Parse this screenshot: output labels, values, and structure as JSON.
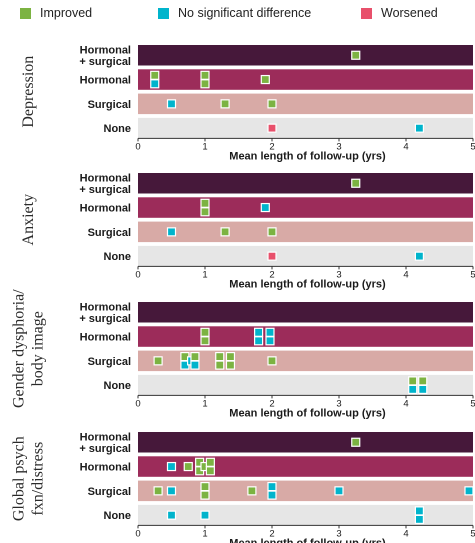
{
  "legend": {
    "improved": {
      "label": "Improved",
      "color": "#7cb342"
    },
    "nsd": {
      "label": "No significant difference",
      "color": "#00b4cc"
    },
    "worsened": {
      "label": "Worsened",
      "color": "#e8506b"
    }
  },
  "row_colors": {
    "hormonal_surgical": "#46183a",
    "hormonal": "#9c2c5a",
    "surgical": "#d8aaa6",
    "none": "#e6e6e6"
  },
  "chart_data": [
    {
      "type": "scatter",
      "title": "Depression",
      "xlabel": "Mean length of follow-up (yrs)",
      "xlim": [
        0,
        5
      ],
      "xticks": [
        "0",
        "1",
        "2",
        "3",
        "4",
        "5"
      ],
      "categories": [
        "Hormonal\n+ surgical",
        "Hormonal",
        "Surgical",
        "None"
      ],
      "points": [
        {
          "row": 0,
          "x": 3.25,
          "outcome": "improved"
        },
        {
          "row": 1,
          "x": 0.25,
          "outcome": "improved"
        },
        {
          "row": 1,
          "x": 0.25,
          "outcome": "nsd"
        },
        {
          "row": 1,
          "x": 1.0,
          "outcome": "improved"
        },
        {
          "row": 1,
          "x": 1.0,
          "outcome": "improved"
        },
        {
          "row": 1,
          "x": 1.9,
          "outcome": "improved"
        },
        {
          "row": 2,
          "x": 0.5,
          "outcome": "nsd"
        },
        {
          "row": 2,
          "x": 1.3,
          "outcome": "improved"
        },
        {
          "row": 2,
          "x": 2.0,
          "outcome": "improved"
        },
        {
          "row": 3,
          "x": 2.0,
          "outcome": "worsened"
        },
        {
          "row": 3,
          "x": 4.2,
          "outcome": "nsd"
        }
      ]
    },
    {
      "type": "scatter",
      "title": "Anxiety",
      "xlabel": "Mean length of follow-up (yrs)",
      "xlim": [
        0,
        5
      ],
      "xticks": [
        "0",
        "1",
        "2",
        "3",
        "4",
        "5"
      ],
      "categories": [
        "Hormonal\n+ surgical",
        "Hormonal",
        "Surgical",
        "None"
      ],
      "points": [
        {
          "row": 0,
          "x": 3.25,
          "outcome": "improved"
        },
        {
          "row": 1,
          "x": 1.0,
          "outcome": "improved"
        },
        {
          "row": 1,
          "x": 1.0,
          "outcome": "improved"
        },
        {
          "row": 1,
          "x": 1.9,
          "outcome": "nsd"
        },
        {
          "row": 2,
          "x": 0.5,
          "outcome": "nsd"
        },
        {
          "row": 2,
          "x": 1.3,
          "outcome": "improved"
        },
        {
          "row": 2,
          "x": 2.0,
          "outcome": "improved"
        },
        {
          "row": 3,
          "x": 2.0,
          "outcome": "worsened"
        },
        {
          "row": 3,
          "x": 4.2,
          "outcome": "nsd"
        }
      ]
    },
    {
      "type": "scatter",
      "title": "Gender dysphoria/\nbody image",
      "xlabel": "Mean length of follow-up (yrs)",
      "xlim": [
        0,
        5
      ],
      "xticks": [
        "0",
        "1",
        "2",
        "3",
        "4",
        "5"
      ],
      "categories": [
        "Hormonal\n+ surgical",
        "Hormonal",
        "Surgical",
        "None"
      ],
      "points": [
        {
          "row": 1,
          "x": 1.0,
          "outcome": "improved"
        },
        {
          "row": 1,
          "x": 1.0,
          "outcome": "improved"
        },
        {
          "row": 1,
          "x": 1.8,
          "outcome": "nsd"
        },
        {
          "row": 1,
          "x": 1.8,
          "outcome": "nsd"
        },
        {
          "row": 1,
          "x": 1.97,
          "outcome": "nsd"
        },
        {
          "row": 1,
          "x": 1.97,
          "outcome": "nsd"
        },
        {
          "row": 2,
          "x": 0.3,
          "outcome": "improved"
        },
        {
          "row": 2,
          "x": 0.7,
          "outcome": "improved"
        },
        {
          "row": 2,
          "x": 0.7,
          "outcome": "nsd"
        },
        {
          "row": 2,
          "x": 0.8,
          "outcome": "nsd"
        },
        {
          "row": 2,
          "x": 0.85,
          "outcome": "improved"
        },
        {
          "row": 2,
          "x": 0.85,
          "outcome": "nsd"
        },
        {
          "row": 2,
          "x": 1.22,
          "outcome": "improved"
        },
        {
          "row": 2,
          "x": 1.22,
          "outcome": "improved"
        },
        {
          "row": 2,
          "x": 1.38,
          "outcome": "improved"
        },
        {
          "row": 2,
          "x": 1.38,
          "outcome": "improved"
        },
        {
          "row": 2,
          "x": 2.0,
          "outcome": "improved"
        },
        {
          "row": 3,
          "x": 4.1,
          "outcome": "improved"
        },
        {
          "row": 3,
          "x": 4.1,
          "outcome": "nsd"
        },
        {
          "row": 3,
          "x": 4.25,
          "outcome": "improved"
        },
        {
          "row": 3,
          "x": 4.25,
          "outcome": "nsd"
        }
      ]
    },
    {
      "type": "scatter",
      "title": "Global psych\nfxn/distress",
      "xlabel": "Mean length of follow-up (yrs)",
      "xlim": [
        0,
        5
      ],
      "xticks": [
        "0",
        "1",
        "2",
        "3",
        "4",
        "5"
      ],
      "categories": [
        "Hormonal\n+ surgical",
        "Hormonal",
        "Surgical",
        "None"
      ],
      "points": [
        {
          "row": 0,
          "x": 3.25,
          "outcome": "improved"
        },
        {
          "row": 1,
          "x": 0.5,
          "outcome": "nsd"
        },
        {
          "row": 1,
          "x": 0.75,
          "outcome": "improved"
        },
        {
          "row": 1,
          "x": 0.92,
          "outcome": "improved"
        },
        {
          "row": 1,
          "x": 0.92,
          "outcome": "improved"
        },
        {
          "row": 1,
          "x": 1.0,
          "outcome": "improved"
        },
        {
          "row": 1,
          "x": 1.08,
          "outcome": "improved"
        },
        {
          "row": 1,
          "x": 1.08,
          "outcome": "improved"
        },
        {
          "row": 2,
          "x": 0.3,
          "outcome": "improved"
        },
        {
          "row": 2,
          "x": 0.5,
          "outcome": "nsd"
        },
        {
          "row": 2,
          "x": 1.0,
          "outcome": "improved"
        },
        {
          "row": 2,
          "x": 1.0,
          "outcome": "improved"
        },
        {
          "row": 2,
          "x": 1.7,
          "outcome": "improved"
        },
        {
          "row": 2,
          "x": 2.0,
          "outcome": "nsd"
        },
        {
          "row": 2,
          "x": 2.0,
          "outcome": "nsd"
        },
        {
          "row": 2,
          "x": 3.0,
          "outcome": "nsd"
        },
        {
          "row": 2,
          "x": 5.0,
          "outcome": "nsd"
        },
        {
          "row": 3,
          "x": 0.5,
          "outcome": "nsd"
        },
        {
          "row": 3,
          "x": 1.0,
          "outcome": "nsd"
        },
        {
          "row": 3,
          "x": 4.2,
          "outcome": "nsd"
        },
        {
          "row": 3,
          "x": 4.2,
          "outcome": "nsd"
        }
      ]
    }
  ]
}
